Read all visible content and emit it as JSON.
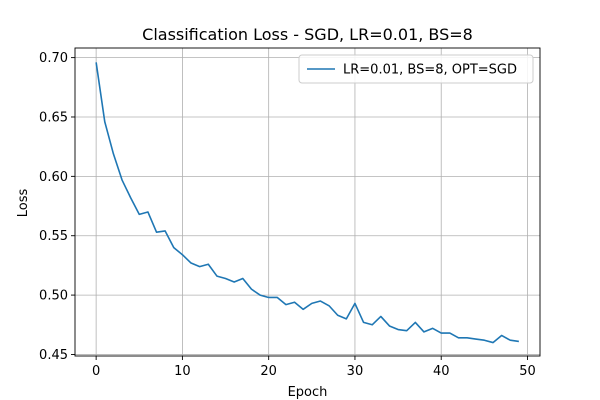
{
  "chart_data": {
    "type": "line",
    "title": "Classification Loss - SGD, LR=0.01, BS=8",
    "xlabel": "Epoch",
    "ylabel": "Loss",
    "xlim": [
      -2.45,
      51.45
    ],
    "ylim": [
      0.4487,
      0.7081
    ],
    "xticks": [
      0,
      10,
      20,
      30,
      40,
      50
    ],
    "yticks": [
      0.45,
      0.5,
      0.55,
      0.6,
      0.65,
      0.7
    ],
    "grid": true,
    "legend_position": "top-right",
    "series": [
      {
        "name": "LR=0.01, BS=8, OPT=SGD",
        "color": "#1f77b4",
        "x": [
          0,
          1,
          2,
          3,
          4,
          5,
          6,
          7,
          8,
          9,
          10,
          11,
          12,
          13,
          14,
          15,
          16,
          17,
          18,
          19,
          20,
          21,
          22,
          23,
          24,
          25,
          26,
          27,
          28,
          29,
          30,
          31,
          32,
          33,
          34,
          35,
          36,
          37,
          38,
          39,
          40,
          41,
          42,
          43,
          44,
          45,
          46,
          47,
          48,
          49
        ],
        "y": [
          0.696,
          0.646,
          0.619,
          0.597,
          0.582,
          0.568,
          0.57,
          0.553,
          0.554,
          0.54,
          0.534,
          0.527,
          0.524,
          0.526,
          0.516,
          0.514,
          0.511,
          0.514,
          0.505,
          0.5,
          0.498,
          0.498,
          0.492,
          0.494,
          0.488,
          0.493,
          0.495,
          0.491,
          0.483,
          0.48,
          0.493,
          0.477,
          0.475,
          0.482,
          0.474,
          0.471,
          0.47,
          0.477,
          0.469,
          0.472,
          0.468,
          0.468,
          0.464,
          0.464,
          0.463,
          0.462,
          0.46,
          0.466,
          0.462,
          0.461
        ]
      }
    ]
  }
}
